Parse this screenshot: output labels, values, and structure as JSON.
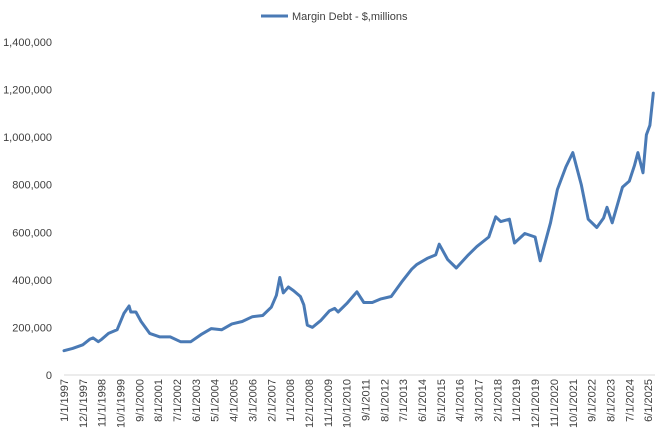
{
  "chart_data": {
    "type": "line",
    "legend_position": "top-center",
    "grid": false,
    "series": [
      {
        "name": "Margin Debt - $,millions",
        "color": "#4a7ab5",
        "points": [
          [
            "1997-01",
            102000
          ],
          [
            "1997-06",
            112000
          ],
          [
            "1997-12",
            127000
          ],
          [
            "1998-04",
            150000
          ],
          [
            "1998-06",
            156000
          ],
          [
            "1998-09",
            140000
          ],
          [
            "1998-11",
            150000
          ],
          [
            "1999-03",
            175000
          ],
          [
            "1999-08",
            190000
          ],
          [
            "1999-12",
            260000
          ],
          [
            "2000-03",
            290000
          ],
          [
            "2000-04",
            265000
          ],
          [
            "2000-07",
            265000
          ],
          [
            "2000-10",
            225000
          ],
          [
            "2001-03",
            175000
          ],
          [
            "2001-09",
            160000
          ],
          [
            "2002-03",
            160000
          ],
          [
            "2002-09",
            140000
          ],
          [
            "2003-03",
            140000
          ],
          [
            "2003-09",
            170000
          ],
          [
            "2004-03",
            195000
          ],
          [
            "2004-09",
            190000
          ],
          [
            "2005-03",
            215000
          ],
          [
            "2005-09",
            225000
          ],
          [
            "2006-03",
            245000
          ],
          [
            "2006-09",
            250000
          ],
          [
            "2007-02",
            285000
          ],
          [
            "2007-05",
            335000
          ],
          [
            "2007-07",
            410000
          ],
          [
            "2007-09",
            345000
          ],
          [
            "2007-12",
            370000
          ],
          [
            "2008-03",
            355000
          ],
          [
            "2008-07",
            330000
          ],
          [
            "2008-09",
            295000
          ],
          [
            "2008-11",
            210000
          ],
          [
            "2009-02",
            200000
          ],
          [
            "2009-07",
            230000
          ],
          [
            "2009-12",
            270000
          ],
          [
            "2010-03",
            280000
          ],
          [
            "2010-05",
            265000
          ],
          [
            "2010-10",
            300000
          ],
          [
            "2011-04",
            350000
          ],
          [
            "2011-08",
            305000
          ],
          [
            "2012-01",
            305000
          ],
          [
            "2012-06",
            320000
          ],
          [
            "2012-12",
            330000
          ],
          [
            "2013-06",
            390000
          ],
          [
            "2013-12",
            445000
          ],
          [
            "2014-03",
            465000
          ],
          [
            "2014-09",
            490000
          ],
          [
            "2015-02",
            505000
          ],
          [
            "2015-04",
            550000
          ],
          [
            "2015-09",
            485000
          ],
          [
            "2016-02",
            450000
          ],
          [
            "2016-09",
            505000
          ],
          [
            "2017-02",
            540000
          ],
          [
            "2017-09",
            580000
          ],
          [
            "2018-01",
            665000
          ],
          [
            "2018-04",
            645000
          ],
          [
            "2018-09",
            655000
          ],
          [
            "2018-12",
            555000
          ],
          [
            "2019-06",
            595000
          ],
          [
            "2019-12",
            580000
          ],
          [
            "2020-03",
            480000
          ],
          [
            "2020-09",
            640000
          ],
          [
            "2021-01",
            780000
          ],
          [
            "2021-06",
            875000
          ],
          [
            "2021-10",
            935000
          ],
          [
            "2022-03",
            800000
          ],
          [
            "2022-07",
            655000
          ],
          [
            "2022-12",
            620000
          ],
          [
            "2023-04",
            660000
          ],
          [
            "2023-06",
            705000
          ],
          [
            "2023-09",
            640000
          ],
          [
            "2024-03",
            790000
          ],
          [
            "2024-07",
            815000
          ],
          [
            "2024-10",
            880000
          ],
          [
            "2024-12",
            935000
          ],
          [
            "2025-03",
            850000
          ],
          [
            "2025-05",
            1010000
          ],
          [
            "2025-07",
            1050000
          ],
          [
            "2025-09",
            1185000
          ]
        ]
      }
    ],
    "y_axis": {
      "min": 0,
      "max": 1400000,
      "ticks": [
        "0",
        "200,000",
        "400,000",
        "600,000",
        "800,000",
        "1,000,000",
        "1,200,000",
        "1,400,000"
      ]
    },
    "x_axis": {
      "min": "1997-01",
      "max": "2025-10",
      "ticks": [
        [
          "1997-01",
          "1/1/1997"
        ],
        [
          "1997-12",
          "12/1/1997"
        ],
        [
          "1998-11",
          "11/1/1998"
        ],
        [
          "1999-10",
          "10/1/1999"
        ],
        [
          "2000-09",
          "9/1/2000"
        ],
        [
          "2001-08",
          "8/1/2001"
        ],
        [
          "2002-07",
          "7/1/2002"
        ],
        [
          "2003-06",
          "6/1/2003"
        ],
        [
          "2004-05",
          "5/1/2004"
        ],
        [
          "2005-04",
          "4/1/2005"
        ],
        [
          "2006-03",
          "3/1/2006"
        ],
        [
          "2007-02",
          "2/1/2007"
        ],
        [
          "2008-01",
          "1/1/2008"
        ],
        [
          "2008-12",
          "12/1/2008"
        ],
        [
          "2009-11",
          "11/1/2009"
        ],
        [
          "2010-10",
          "10/1/2010"
        ],
        [
          "2011-09",
          "9/1/2011"
        ],
        [
          "2012-08",
          "8/1/2012"
        ],
        [
          "2013-07",
          "7/1/2013"
        ],
        [
          "2014-06",
          "6/1/2014"
        ],
        [
          "2015-05",
          "5/1/2015"
        ],
        [
          "2016-04",
          "4/1/2016"
        ],
        [
          "2017-03",
          "3/1/2017"
        ],
        [
          "2018-02",
          "2/1/2018"
        ],
        [
          "2019-01",
          "1/1/2019"
        ],
        [
          "2019-12",
          "12/1/2019"
        ],
        [
          "2020-11",
          "11/1/2020"
        ],
        [
          "2021-10",
          "10/1/2021"
        ],
        [
          "2022-09",
          "9/1/2022"
        ],
        [
          "2023-08",
          "8/1/2023"
        ],
        [
          "2024-07",
          "7/1/2024"
        ],
        [
          "2025-06",
          "6/1/2025"
        ]
      ]
    }
  }
}
